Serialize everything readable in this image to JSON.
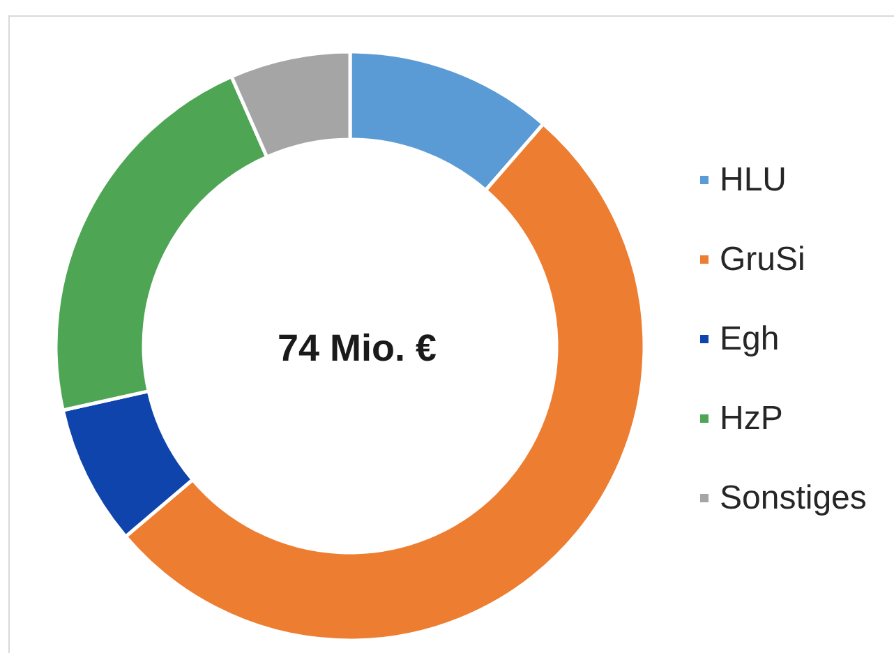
{
  "chart_data": {
    "type": "donut",
    "title": "74 Mio. €",
    "categories": [
      "HLU",
      "GruSi",
      "Egh",
      "HzP",
      "Sonstiges"
    ],
    "values": [
      11.4,
      52.4,
      7.7,
      21.9,
      6.6
    ],
    "colors": [
      "#5b9bd5",
      "#ed7d31",
      "#1044ad",
      "#4ea654",
      "#a5a5a5"
    ],
    "legend": "right"
  }
}
